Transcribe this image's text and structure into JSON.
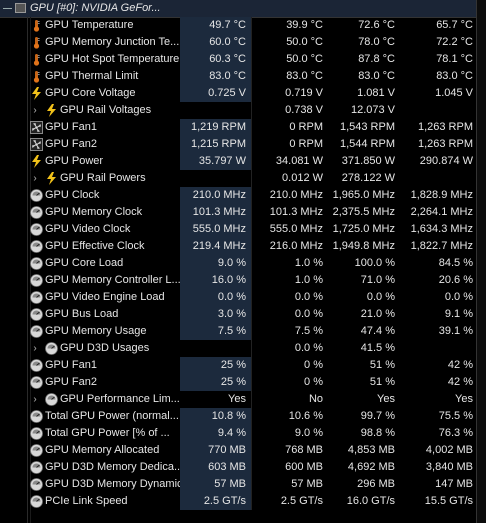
{
  "header": {
    "title": "GPU [#0]: NVIDIA GeFor..."
  },
  "rows": [
    {
      "name": "GPU Temperature",
      "icon": "thermometer",
      "cur": "49.7 °C",
      "min": "39.9 °C",
      "max": "72.6 °C",
      "avg": "65.7 °C"
    },
    {
      "name": "GPU Memory Junction Te...",
      "icon": "thermometer",
      "cur": "60.0 °C",
      "min": "50.0 °C",
      "max": "78.0 °C",
      "avg": "72.2 °C"
    },
    {
      "name": "GPU Hot Spot Temperature",
      "icon": "thermometer",
      "cur": "60.3 °C",
      "min": "50.0 °C",
      "max": "87.8 °C",
      "avg": "78.1 °C"
    },
    {
      "name": "GPU Thermal Limit",
      "icon": "thermometer",
      "cur": "83.0 °C",
      "min": "83.0 °C",
      "max": "83.0 °C",
      "avg": "83.0 °C"
    },
    {
      "name": "GPU Core Voltage",
      "icon": "lightning",
      "cur": "0.725 V",
      "min": "0.719 V",
      "max": "1.081 V",
      "avg": "1.045 V"
    },
    {
      "name": "GPU Rail Voltages",
      "icon": "lightning",
      "group": true,
      "cur": "",
      "min": "0.738 V",
      "max": "12.073 V",
      "avg": ""
    },
    {
      "name": "GPU Fan1",
      "icon": "fan",
      "cur": "1,219 RPM",
      "min": "0 RPM",
      "max": "1,543 RPM",
      "avg": "1,263 RPM"
    },
    {
      "name": "GPU Fan2",
      "icon": "fan",
      "cur": "1,215 RPM",
      "min": "0 RPM",
      "max": "1,544 RPM",
      "avg": "1,263 RPM"
    },
    {
      "name": "GPU Power",
      "icon": "lightning",
      "cur": "35.797 W",
      "min": "34.081 W",
      "max": "371.850 W",
      "avg": "290.874 W"
    },
    {
      "name": "GPU Rail Powers",
      "icon": "lightning",
      "group": true,
      "cur": "",
      "min": "0.012 W",
      "max": "278.122 W",
      "avg": ""
    },
    {
      "name": "GPU Clock",
      "icon": "gauge",
      "cur": "210.0 MHz",
      "min": "210.0 MHz",
      "max": "1,965.0 MHz",
      "avg": "1,828.9 MHz"
    },
    {
      "name": "GPU Memory Clock",
      "icon": "gauge",
      "cur": "101.3 MHz",
      "min": "101.3 MHz",
      "max": "2,375.5 MHz",
      "avg": "2,264.1 MHz"
    },
    {
      "name": "GPU Video Clock",
      "icon": "gauge",
      "cur": "555.0 MHz",
      "min": "555.0 MHz",
      "max": "1,725.0 MHz",
      "avg": "1,634.3 MHz"
    },
    {
      "name": "GPU Effective Clock",
      "icon": "gauge",
      "cur": "219.4 MHz",
      "min": "216.0 MHz",
      "max": "1,949.8 MHz",
      "avg": "1,822.7 MHz"
    },
    {
      "name": "GPU Core Load",
      "icon": "gauge",
      "cur": "9.0 %",
      "min": "1.0 %",
      "max": "100.0 %",
      "avg": "84.5 %"
    },
    {
      "name": "GPU Memory Controller L...",
      "icon": "gauge",
      "cur": "16.0 %",
      "min": "1.0 %",
      "max": "71.0 %",
      "avg": "20.6 %"
    },
    {
      "name": "GPU Video Engine Load",
      "icon": "gauge",
      "cur": "0.0 %",
      "min": "0.0 %",
      "max": "0.0 %",
      "avg": "0.0 %"
    },
    {
      "name": "GPU Bus Load",
      "icon": "gauge",
      "cur": "3.0 %",
      "min": "0.0 %",
      "max": "21.0 %",
      "avg": "9.1 %"
    },
    {
      "name": "GPU Memory Usage",
      "icon": "gauge",
      "cur": "7.5 %",
      "min": "7.5 %",
      "max": "47.4 %",
      "avg": "39.1 %"
    },
    {
      "name": "GPU D3D Usages",
      "icon": "gauge",
      "group": true,
      "cur": "",
      "min": "0.0 %",
      "max": "41.5 %",
      "avg": ""
    },
    {
      "name": "GPU Fan1",
      "icon": "gauge",
      "cur": "25 %",
      "min": "0 %",
      "max": "51 %",
      "avg": "42 %"
    },
    {
      "name": "GPU Fan2",
      "icon": "gauge",
      "cur": "25 %",
      "min": "0 %",
      "max": "51 %",
      "avg": "42 %"
    },
    {
      "name": "GPU Performance Lim...",
      "icon": "gauge",
      "group": true,
      "cur": "Yes",
      "min": "No",
      "max": "Yes",
      "avg": "Yes"
    },
    {
      "name": "Total GPU Power (normal...",
      "icon": "gauge",
      "cur": "10.8 %",
      "min": "10.6 %",
      "max": "99.7 %",
      "avg": "75.5 %"
    },
    {
      "name": "Total GPU Power [% of ...",
      "icon": "gauge",
      "cur": "9.4 %",
      "min": "9.0 %",
      "max": "98.8 %",
      "avg": "76.3 %"
    },
    {
      "name": "GPU Memory Allocated",
      "icon": "gauge",
      "cur": "770 MB",
      "min": "768 MB",
      "max": "4,853 MB",
      "avg": "4,002 MB"
    },
    {
      "name": "GPU D3D Memory Dedica...",
      "icon": "gauge",
      "cur": "603 MB",
      "min": "600 MB",
      "max": "4,692 MB",
      "avg": "3,840 MB"
    },
    {
      "name": "GPU D3D Memory Dynamic",
      "icon": "gauge",
      "cur": "57 MB",
      "min": "57 MB",
      "max": "296 MB",
      "avg": "147 MB"
    },
    {
      "name": "PCIe Link Speed",
      "icon": "gauge",
      "cur": "2.5 GT/s",
      "min": "2.5 GT/s",
      "max": "16.0 GT/s",
      "avg": "15.5 GT/s"
    }
  ]
}
